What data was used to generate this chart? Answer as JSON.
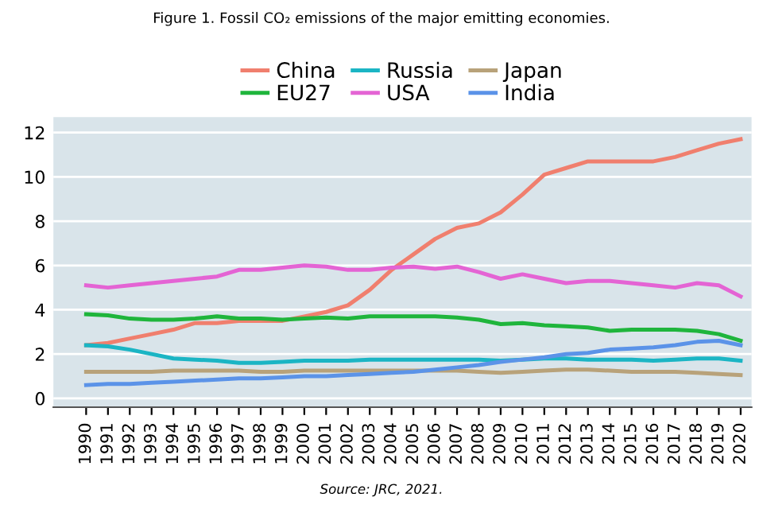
{
  "chart_data": {
    "type": "line",
    "title": "Figure 1. Fossil CO₂ emissions of the major emitting economies.",
    "annotations": [
      "Source: JRC, 2021."
    ],
    "categories": [
      "1990",
      "1991",
      "1992",
      "1993",
      "1994",
      "1995",
      "1996",
      "1997",
      "1998",
      "1999",
      "2000",
      "2001",
      "2002",
      "2003",
      "2004",
      "2005",
      "2006",
      "2007",
      "2008",
      "2009",
      "2010",
      "2011",
      "2012",
      "2013",
      "2014",
      "2015",
      "2016",
      "2017",
      "2018",
      "2019",
      "2020"
    ],
    "ylim": [
      -0.4,
      12.7
    ],
    "yticks": [
      0,
      2,
      4,
      6,
      8,
      10,
      12
    ],
    "grid": "y",
    "legend": "top",
    "marker": "none",
    "line_style": "solid",
    "series": [
      {
        "name": "China",
        "color": "#f07f6e",
        "values": [
          2.4,
          2.5,
          2.7,
          2.9,
          3.1,
          3.4,
          3.4,
          3.5,
          3.5,
          3.5,
          3.7,
          3.9,
          4.2,
          4.9,
          5.8,
          6.5,
          7.2,
          7.7,
          7.9,
          8.4,
          9.2,
          10.1,
          10.4,
          10.7,
          10.7,
          10.7,
          10.7,
          10.9,
          11.2,
          11.5,
          11.7
        ]
      },
      {
        "name": "EU27",
        "color": "#1fb53c",
        "values": [
          3.8,
          3.75,
          3.6,
          3.55,
          3.55,
          3.6,
          3.7,
          3.6,
          3.6,
          3.55,
          3.6,
          3.65,
          3.6,
          3.7,
          3.7,
          3.7,
          3.7,
          3.65,
          3.55,
          3.35,
          3.4,
          3.3,
          3.25,
          3.2,
          3.05,
          3.1,
          3.1,
          3.1,
          3.05,
          2.9,
          2.6
        ]
      },
      {
        "name": "Russia",
        "color": "#1bb5c4",
        "values": [
          2.4,
          2.35,
          2.2,
          2.0,
          1.8,
          1.75,
          1.7,
          1.6,
          1.6,
          1.65,
          1.7,
          1.7,
          1.7,
          1.75,
          1.75,
          1.75,
          1.75,
          1.75,
          1.75,
          1.7,
          1.75,
          1.8,
          1.8,
          1.75,
          1.75,
          1.75,
          1.7,
          1.75,
          1.8,
          1.8,
          1.7
        ]
      },
      {
        "name": "USA",
        "color": "#e464d4",
        "values": [
          5.1,
          5.0,
          5.1,
          5.2,
          5.3,
          5.4,
          5.5,
          5.8,
          5.8,
          5.9,
          6.0,
          5.95,
          5.8,
          5.8,
          5.9,
          5.95,
          5.85,
          5.95,
          5.7,
          5.4,
          5.6,
          5.4,
          5.2,
          5.3,
          5.3,
          5.2,
          5.1,
          5.0,
          5.2,
          5.1,
          4.6
        ]
      },
      {
        "name": "Japan",
        "color": "#b8a27a",
        "values": [
          1.2,
          1.2,
          1.2,
          1.2,
          1.25,
          1.25,
          1.25,
          1.25,
          1.2,
          1.2,
          1.25,
          1.25,
          1.25,
          1.25,
          1.25,
          1.25,
          1.25,
          1.25,
          1.2,
          1.15,
          1.2,
          1.25,
          1.3,
          1.3,
          1.25,
          1.2,
          1.2,
          1.2,
          1.15,
          1.1,
          1.05
        ]
      },
      {
        "name": "India",
        "color": "#5b93e8",
        "values": [
          0.6,
          0.65,
          0.65,
          0.7,
          0.75,
          0.8,
          0.85,
          0.9,
          0.9,
          0.95,
          1.0,
          1.0,
          1.05,
          1.1,
          1.15,
          1.2,
          1.3,
          1.4,
          1.5,
          1.65,
          1.75,
          1.85,
          2.0,
          2.05,
          2.2,
          2.25,
          2.3,
          2.4,
          2.55,
          2.6,
          2.4
        ]
      }
    ]
  }
}
